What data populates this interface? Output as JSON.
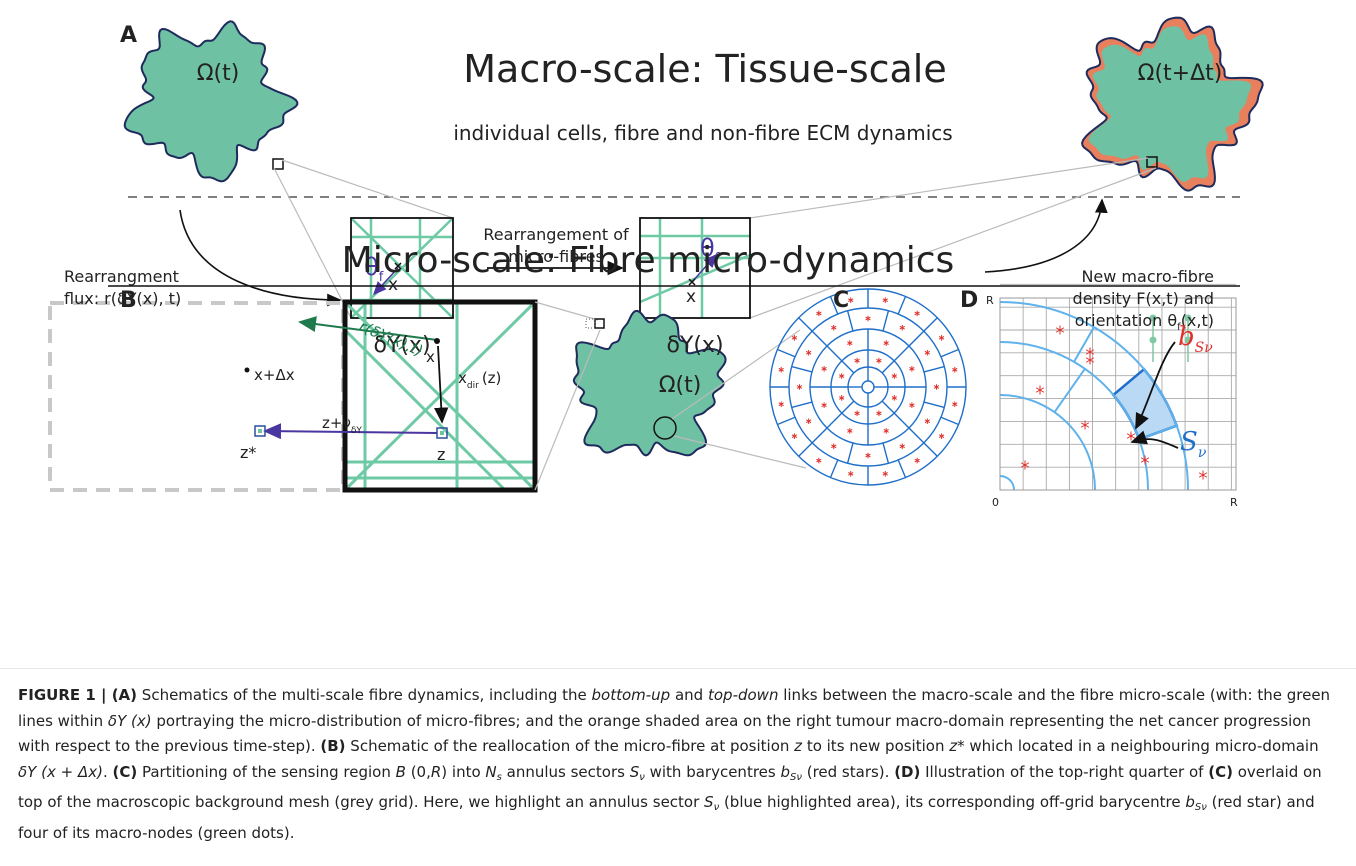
{
  "panel_a": {
    "label": "A",
    "title": "Macro-scale: Tissue-scale",
    "subtitle": "individual cells, fibre and non-fibre ECM dynamics",
    "omega_left": "Ω(t)",
    "omega_right": "Ω(t+Δt)",
    "flux_label_1": "Rearrangment",
    "flux_label_2": "flux: r(δY(x), t)",
    "middle_label_1": "Rearrangement of",
    "middle_label_2": "micro-fibres",
    "right_label_1": "New macro-fibre",
    "right_label_2": "density F(x,t) and",
    "right_label_3": [
      "orientation θ",
      "f",
      "(x,t)"
    ],
    "domain_left": "δY(x)",
    "domain_right": "δY(x)",
    "theta": "θ",
    "theta_sub": "f",
    "point": "x",
    "micro_title": "Micro-scale: Fibre micro-dynamics"
  },
  "panel_b": {
    "label": "B",
    "flux": "r(δY(x),t)",
    "point_x": "x",
    "point_x_shift": "x+Δx",
    "dir": [
      "x",
      "dir",
      "(z)"
    ],
    "shift": [
      "z+ν",
      "δY"
    ],
    "z_star": "z*",
    "z": "z",
    "omega": "Ω(t)"
  },
  "panel_c": {
    "label": "C"
  },
  "panel_d": {
    "label": "D",
    "r_top": "R",
    "r_right": "R",
    "origin": "0",
    "barycentre": [
      "b",
      "Sν"
    ],
    "sector": [
      "S",
      "ν"
    ]
  },
  "caption": [
    {
      "text": "FIGURE 1 | (A)",
      "style": "bold"
    },
    {
      "text": " Schematics of the multi-scale fibre dynamics, including the ",
      "style": "normal"
    },
    {
      "text": "bottom-up",
      "style": "italic"
    },
    {
      "text": " and ",
      "style": "normal"
    },
    {
      "text": "top-down",
      "style": "italic"
    },
    {
      "text": " links between the macro-scale and the fibre micro-scale (with: the green lines within ",
      "style": "normal"
    },
    {
      "text": "δY (x)",
      "style": "italic"
    },
    {
      "text": " portraying the micro-distribution of micro-fibres; and the orange shaded area on the right tumour macro-domain representing the net cancer progression with respect to the previous time-step). ",
      "style": "normal"
    },
    {
      "text": "(B)",
      "style": "bold"
    },
    {
      "text": " Schematic of the reallocation of the micro-fibre at position ",
      "style": "normal"
    },
    {
      "text": "z",
      "style": "italic"
    },
    {
      "text": " to its new position ",
      "style": "normal"
    },
    {
      "text": "z*",
      "style": "italic"
    },
    {
      "text": " which located in a neighbouring micro-domain ",
      "style": "normal"
    },
    {
      "text": "δY (x + Δx)",
      "style": "italic"
    },
    {
      "text": ". ",
      "style": "normal"
    },
    {
      "text": "(C)",
      "style": "bold"
    },
    {
      "text": " Partitioning of the sensing region ",
      "style": "normal"
    },
    {
      "text": "B",
      "style": "italic"
    },
    {
      "text": " (0,",
      "style": "normal"
    },
    {
      "text": "R",
      "style": "italic"
    },
    {
      "text": ") into ",
      "style": "normal"
    },
    {
      "text": "N",
      "style": "italic"
    },
    {
      "text": "s",
      "style": "sub"
    },
    {
      "text": " annulus sectors ",
      "style": "normal"
    },
    {
      "text": "S",
      "style": "italic"
    },
    {
      "text": "ν",
      "style": "sub"
    },
    {
      "text": " with barycentres ",
      "style": "normal"
    },
    {
      "text": "b",
      "style": "italic"
    },
    {
      "text": "Sν",
      "style": "sub"
    },
    {
      "text": " (red stars). ",
      "style": "normal"
    },
    {
      "text": "(D)",
      "style": "bold"
    },
    {
      "text": " Illustration of the top-right quarter of ",
      "style": "normal"
    },
    {
      "text": "(C)",
      "style": "bold"
    },
    {
      "text": " overlaid on top of the macroscopic background mesh (grey grid). Here, we highlight an annulus sector ",
      "style": "normal"
    },
    {
      "text": "S",
      "style": "italic"
    },
    {
      "text": "ν",
      "style": "sub"
    },
    {
      "text": " (blue highlighted area), its corresponding off-grid barycentre ",
      "style": "normal"
    },
    {
      "text": "b",
      "style": "italic"
    },
    {
      "text": "Sν",
      "style": "sub"
    },
    {
      "text": " (red star) and four of its macro-nodes (green dots).",
      "style": "normal"
    }
  ]
}
